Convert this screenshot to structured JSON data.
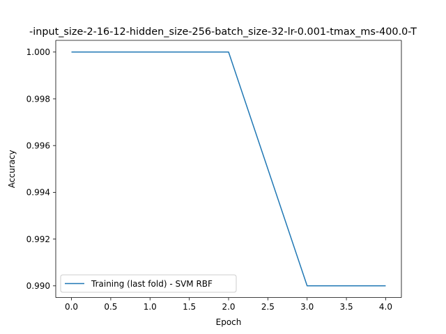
{
  "chart_data": {
    "type": "line",
    "title": "-input_size-2-16-12-hidden_size-256-batch_size-32-lr-0.001-tmax_ms-400.0-T",
    "xlabel": "Epoch",
    "ylabel": "Accuracy",
    "xlim": [
      -0.2,
      4.2
    ],
    "ylim": [
      0.9895,
      1.0005
    ],
    "xticks": [
      0.0,
      0.5,
      1.0,
      1.5,
      2.0,
      2.5,
      3.0,
      3.5,
      4.0
    ],
    "xtick_labels": [
      "0.0",
      "0.5",
      "1.0",
      "1.5",
      "2.0",
      "2.5",
      "3.0",
      "3.5",
      "4.0"
    ],
    "yticks": [
      0.99,
      0.992,
      0.994,
      0.996,
      0.998,
      1.0
    ],
    "ytick_labels": [
      "0.990",
      "0.992",
      "0.994",
      "0.996",
      "0.998",
      "1.000"
    ],
    "grid": false,
    "legend_position": "lower-left",
    "series": [
      {
        "name": "Training (last fold) - SVM RBF",
        "color": "#1f77b4",
        "x": [
          0,
          1,
          2,
          3,
          4
        ],
        "y": [
          1.0,
          1.0,
          1.0,
          0.99,
          0.99
        ]
      }
    ]
  }
}
